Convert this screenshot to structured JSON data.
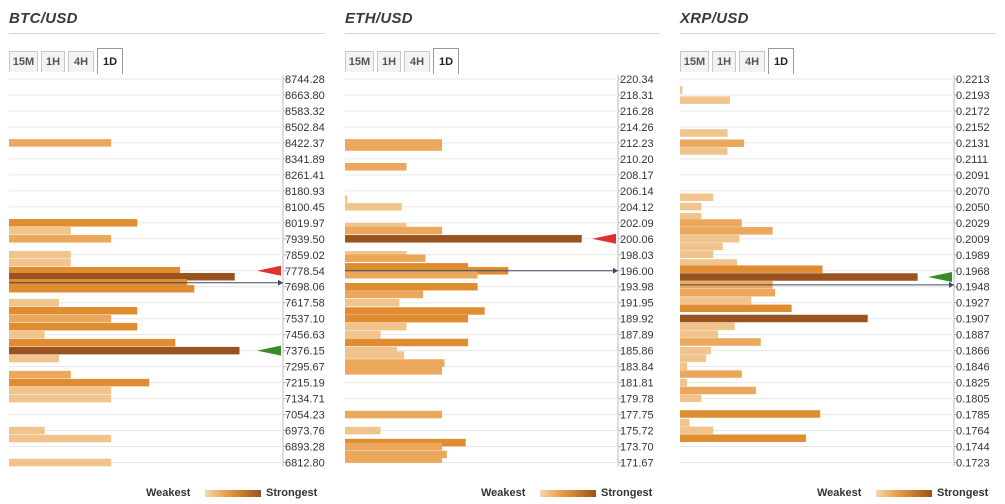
{
  "legend": {
    "weakest": "Weakest",
    "strongest": "Strongest",
    "gradient_colors": [
      "#f6d7b0",
      "#e9a454",
      "#c97a2a",
      "#9a5320"
    ]
  },
  "colors": {
    "lightest": "#f6d7b0",
    "light": "#f0c48c",
    "medium": "#eba85c",
    "dark": "#e08c30",
    "darkest": "#9a5320",
    "red_marker": "#e03030",
    "green_marker": "#3a8a2a",
    "blue_line": "#3a4a6a"
  },
  "panels": [
    {
      "title": "BTC/USD",
      "timeframes": [
        "15M",
        "1H",
        "4H",
        "1D"
      ],
      "active_timeframe": "1D",
      "chart_data": {
        "type": "bar",
        "orientation": "horizontal",
        "price_levels": [
          "8744.28",
          "8663.80",
          "8583.32",
          "8502.84",
          "8422.37",
          "8341.89",
          "8261.41",
          "8180.93",
          "8100.45",
          "8019.97",
          "7939.50",
          "7859.02",
          "7778.54",
          "7698.06",
          "7617.58",
          "7537.10",
          "7456.63",
          "7376.15",
          "7295.67",
          "7215.19",
          "7134.71",
          "7054.23",
          "6973.76",
          "6893.28",
          "6812.80"
        ],
        "ymax": 8744.28,
        "ymin": 6812.8,
        "bars": [
          {
            "price": 8422.37,
            "strength": 0.43,
            "shade": 2
          },
          {
            "price": 8019.97,
            "strength": 0.54,
            "shade": 3
          },
          {
            "price": 7979.7,
            "strength": 0.26,
            "shade": 1
          },
          {
            "price": 7939.5,
            "strength": 0.43,
            "shade": 2
          },
          {
            "price": 7859.02,
            "strength": 0.26,
            "shade": 1
          },
          {
            "price": 7818.8,
            "strength": 0.26,
            "shade": 1
          },
          {
            "price": 7778.54,
            "strength": 0.72,
            "shade": 3
          },
          {
            "price": 7748.5,
            "strength": 0.95,
            "shade": 4
          },
          {
            "price": 7718.3,
            "strength": 0.75,
            "shade": 3
          },
          {
            "price": 7688.0,
            "strength": 0.78,
            "shade": 3
          },
          {
            "price": 7617.58,
            "strength": 0.21,
            "shade": 1
          },
          {
            "price": 7577.3,
            "strength": 0.54,
            "shade": 3
          },
          {
            "price": 7537.1,
            "strength": 0.43,
            "shade": 2
          },
          {
            "price": 7496.9,
            "strength": 0.54,
            "shade": 3
          },
          {
            "price": 7456.63,
            "strength": 0.15,
            "shade": 1
          },
          {
            "price": 7416.4,
            "strength": 0.7,
            "shade": 3
          },
          {
            "price": 7376.15,
            "strength": 0.97,
            "shade": 4
          },
          {
            "price": 7336.0,
            "strength": 0.21,
            "shade": 1
          },
          {
            "price": 7255.4,
            "strength": 0.26,
            "shade": 2
          },
          {
            "price": 7215.19,
            "strength": 0.59,
            "shade": 3
          },
          {
            "price": 7175.0,
            "strength": 0.43,
            "shade": 1
          },
          {
            "price": 7134.71,
            "strength": 0.43,
            "shade": 1
          },
          {
            "price": 6973.76,
            "strength": 0.15,
            "shade": 1
          },
          {
            "price": 6933.5,
            "strength": 0.43,
            "shade": 1
          },
          {
            "price": 6812.8,
            "strength": 0.43,
            "shade": 1
          }
        ],
        "markers": [
          {
            "type": "red-triangle",
            "price": 7778.54
          },
          {
            "type": "green-triangle",
            "price": 7376.15
          },
          {
            "type": "blue-line",
            "price": 7718.3
          }
        ]
      }
    },
    {
      "title": "ETH/USD",
      "timeframes": [
        "15M",
        "1H",
        "4H",
        "1D"
      ],
      "active_timeframe": "1D",
      "chart_data": {
        "type": "bar",
        "orientation": "horizontal",
        "price_levels": [
          "220.34",
          "218.31",
          "216.28",
          "214.26",
          "212.23",
          "210.20",
          "208.17",
          "206.14",
          "204.12",
          "202.09",
          "200.06",
          "198.03",
          "196.00",
          "193.98",
          "191.95",
          "189.92",
          "187.89",
          "185.86",
          "183.84",
          "181.81",
          "179.78",
          "177.75",
          "175.72",
          "173.70",
          "171.67"
        ],
        "ymax": 220.34,
        "ymin": 171.67,
        "bars": [
          {
            "price": 212.23,
            "strength": 0.41,
            "shade": 2
          },
          {
            "price": 211.7,
            "strength": 0.41,
            "shade": 2
          },
          {
            "price": 209.2,
            "strength": 0.26,
            "shade": 2
          },
          {
            "price": 205.1,
            "strength": 0.01,
            "shade": 1
          },
          {
            "price": 204.12,
            "strength": 0.24,
            "shade": 1
          },
          {
            "price": 201.6,
            "strength": 0.26,
            "shade": 1
          },
          {
            "price": 201.1,
            "strength": 0.41,
            "shade": 2
          },
          {
            "price": 200.06,
            "strength": 1.0,
            "shade": 4
          },
          {
            "price": 198.03,
            "strength": 0.26,
            "shade": 1
          },
          {
            "price": 197.6,
            "strength": 0.34,
            "shade": 2
          },
          {
            "price": 196.5,
            "strength": 0.52,
            "shade": 3
          },
          {
            "price": 196.0,
            "strength": 0.69,
            "shade": 3
          },
          {
            "price": 195.5,
            "strength": 0.56,
            "shade": 2
          },
          {
            "price": 193.98,
            "strength": 0.56,
            "shade": 3
          },
          {
            "price": 193.0,
            "strength": 0.33,
            "shade": 2
          },
          {
            "price": 191.95,
            "strength": 0.23,
            "shade": 1
          },
          {
            "price": 190.9,
            "strength": 0.59,
            "shade": 3
          },
          {
            "price": 189.92,
            "strength": 0.52,
            "shade": 3
          },
          {
            "price": 188.9,
            "strength": 0.26,
            "shade": 1
          },
          {
            "price": 187.89,
            "strength": 0.15,
            "shade": 1
          },
          {
            "price": 186.9,
            "strength": 0.52,
            "shade": 3
          },
          {
            "price": 185.86,
            "strength": 0.22,
            "shade": 1
          },
          {
            "price": 185.3,
            "strength": 0.25,
            "shade": 1
          },
          {
            "price": 184.3,
            "strength": 0.42,
            "shade": 2
          },
          {
            "price": 183.84,
            "strength": 0.41,
            "shade": 2
          },
          {
            "price": 183.3,
            "strength": 0.41,
            "shade": 2
          },
          {
            "price": 177.75,
            "strength": 0.41,
            "shade": 2
          },
          {
            "price": 175.72,
            "strength": 0.15,
            "shade": 1
          },
          {
            "price": 174.2,
            "strength": 0.51,
            "shade": 3
          },
          {
            "price": 173.7,
            "strength": 0.41,
            "shade": 2
          },
          {
            "price": 172.7,
            "strength": 0.43,
            "shade": 2
          },
          {
            "price": 172.1,
            "strength": 0.41,
            "shade": 2
          }
        ],
        "markers": [
          {
            "type": "red-triangle",
            "price": 200.06
          },
          {
            "type": "blue-line",
            "price": 196.0
          }
        ]
      }
    },
    {
      "title": "XRP/USD",
      "timeframes": [
        "15M",
        "1H",
        "4H",
        "1D"
      ],
      "active_timeframe": "1D",
      "chart_data": {
        "type": "bar",
        "orientation": "horizontal",
        "price_levels": [
          "0.2213",
          "0.2193",
          "0.2172",
          "0.2152",
          "0.2131",
          "0.2111",
          "0.2091",
          "0.2070",
          "0.2050",
          "0.2029",
          "0.2009",
          "0.1989",
          "0.1968",
          "0.1948",
          "0.1927",
          "0.1907",
          "0.1887",
          "0.1866",
          "0.1846",
          "0.1825",
          "0.1805",
          "0.1785",
          "0.1764",
          "0.1744",
          "0.1723"
        ],
        "ymax": 0.2213,
        "ymin": 0.1723,
        "bars": [
          {
            "price": 0.2199,
            "strength": 0.01,
            "shade": 1
          },
          {
            "price": 0.2186,
            "strength": 0.21,
            "shade": 1
          },
          {
            "price": 0.2144,
            "strength": 0.2,
            "shade": 1
          },
          {
            "price": 0.2131,
            "strength": 0.27,
            "shade": 2
          },
          {
            "price": 0.2121,
            "strength": 0.2,
            "shade": 1
          },
          {
            "price": 0.2062,
            "strength": 0.14,
            "shade": 1
          },
          {
            "price": 0.205,
            "strength": 0.09,
            "shade": 1
          },
          {
            "price": 0.2037,
            "strength": 0.09,
            "shade": 1
          },
          {
            "price": 0.2029,
            "strength": 0.26,
            "shade": 2
          },
          {
            "price": 0.2019,
            "strength": 0.39,
            "shade": 2
          },
          {
            "price": 0.2009,
            "strength": 0.25,
            "shade": 1
          },
          {
            "price": 0.1999,
            "strength": 0.18,
            "shade": 1
          },
          {
            "price": 0.1989,
            "strength": 0.14,
            "shade": 1
          },
          {
            "price": 0.1978,
            "strength": 0.24,
            "shade": 1
          },
          {
            "price": 0.197,
            "strength": 0.6,
            "shade": 3
          },
          {
            "price": 0.196,
            "strength": 1.0,
            "shade": 4
          },
          {
            "price": 0.195,
            "strength": 0.39,
            "shade": 2
          },
          {
            "price": 0.194,
            "strength": 0.4,
            "shade": 2
          },
          {
            "price": 0.193,
            "strength": 0.3,
            "shade": 1
          },
          {
            "price": 0.192,
            "strength": 0.47,
            "shade": 3
          },
          {
            "price": 0.1907,
            "strength": 0.79,
            "shade": 4
          },
          {
            "price": 0.1897,
            "strength": 0.23,
            "shade": 1
          },
          {
            "price": 0.1887,
            "strength": 0.16,
            "shade": 1
          },
          {
            "price": 0.1877,
            "strength": 0.34,
            "shade": 2
          },
          {
            "price": 0.1866,
            "strength": 0.13,
            "shade": 1
          },
          {
            "price": 0.1856,
            "strength": 0.11,
            "shade": 1
          },
          {
            "price": 0.1846,
            "strength": 0.03,
            "shade": 1
          },
          {
            "price": 0.1836,
            "strength": 0.26,
            "shade": 2
          },
          {
            "price": 0.1825,
            "strength": 0.03,
            "shade": 1
          },
          {
            "price": 0.1815,
            "strength": 0.32,
            "shade": 2
          },
          {
            "price": 0.1805,
            "strength": 0.09,
            "shade": 1
          },
          {
            "price": 0.1785,
            "strength": 0.59,
            "shade": 3
          },
          {
            "price": 0.1774,
            "strength": 0.04,
            "shade": 1
          },
          {
            "price": 0.1764,
            "strength": 0.14,
            "shade": 1
          },
          {
            "price": 0.1754,
            "strength": 0.53,
            "shade": 3
          }
        ],
        "markers": [
          {
            "type": "green-triangle",
            "price": 0.196
          },
          {
            "type": "blue-line",
            "price": 0.195
          }
        ]
      }
    }
  ]
}
